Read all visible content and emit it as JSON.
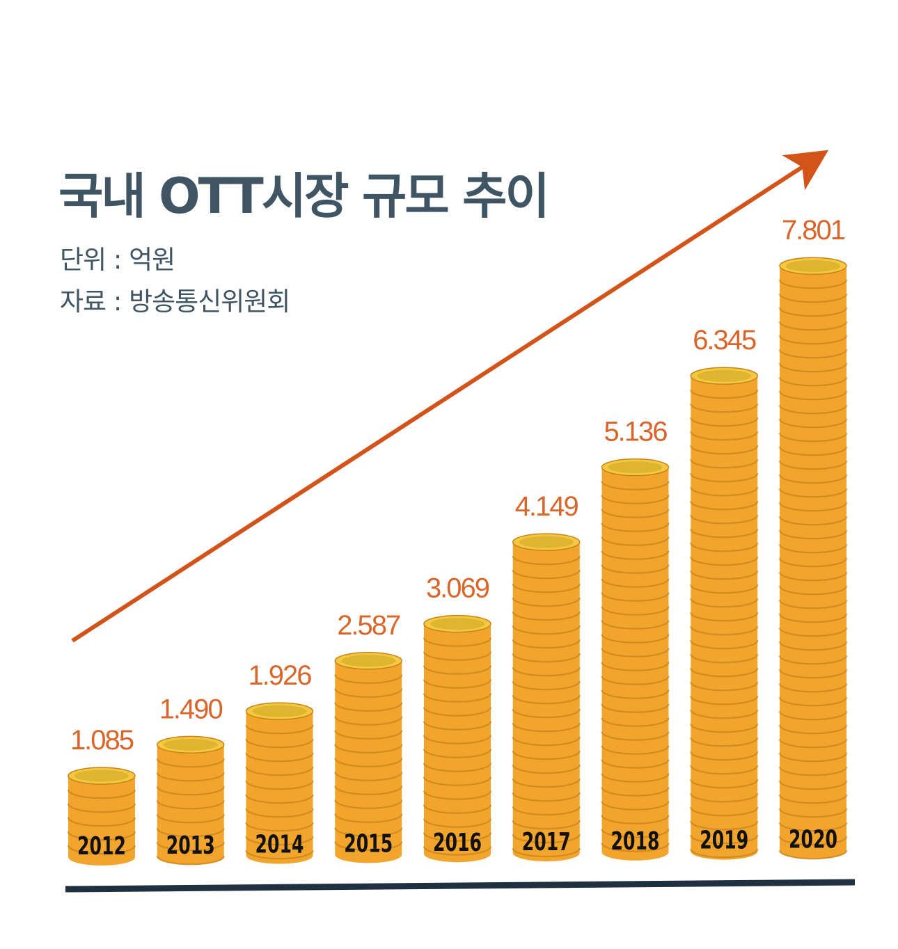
{
  "header": {
    "title": "국내 OTT시장 규모 추이",
    "unit_text": "단위 : 억원",
    "source_text": "자료 : 방송통신위원회"
  },
  "colors": {
    "title": "#3f5563",
    "value_label": "#d9652a",
    "arrow": "#d3541a",
    "coin_body": "#f2a52d",
    "coin_top": "#f5c842",
    "coin_top_inner": "#ddb52e",
    "coin_line": "#c9811a",
    "baseline": "#1f3040"
  },
  "chart_data": {
    "type": "bar",
    "title": "국내 OTT시장 규모 추이",
    "xlabel": "",
    "ylabel": "",
    "categories": [
      "2012",
      "2013",
      "2014",
      "2015",
      "2016",
      "2017",
      "2018",
      "2019",
      "2020"
    ],
    "labels": [
      "1.085",
      "1.490",
      "1.926",
      "2.587",
      "3.069",
      "4.149",
      "5.136",
      "6.345",
      "7.801"
    ],
    "values": [
      1085,
      1490,
      1926,
      2587,
      3069,
      4149,
      5136,
      6345,
      7801
    ],
    "ylim": [
      0,
      8000
    ],
    "grid": false,
    "legend": "none"
  }
}
